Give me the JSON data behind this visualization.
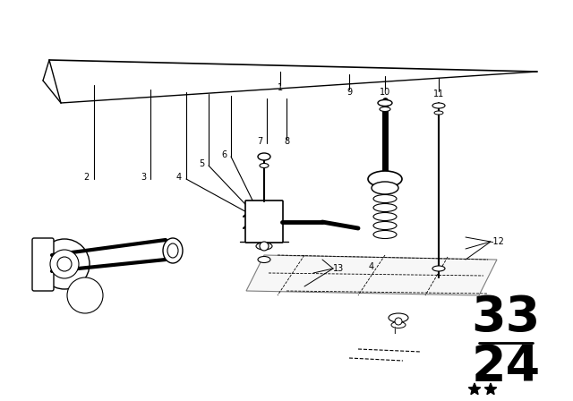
{
  "bg_color": "#ffffff",
  "line_color": "#000000",
  "fig_width": 6.4,
  "fig_height": 4.48,
  "dpi": 100,
  "page_top": "33",
  "page_bot": "24"
}
